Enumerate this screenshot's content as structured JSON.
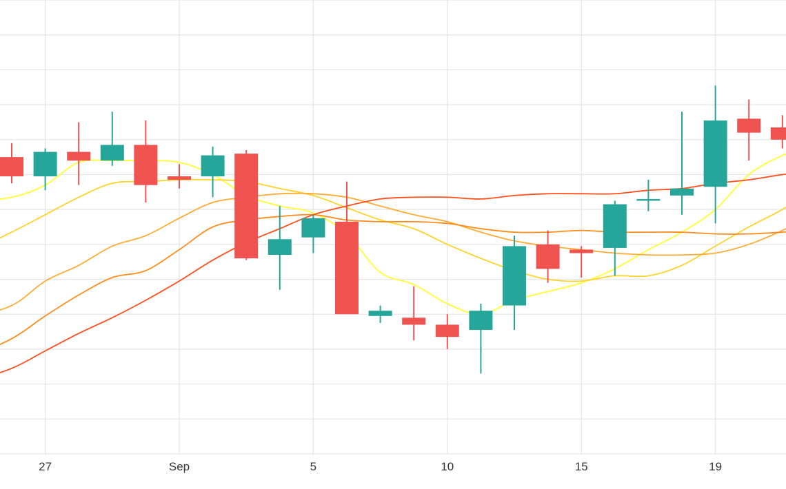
{
  "chart_data": {
    "type": "candlestick",
    "grid": true,
    "x_tick_labels": [
      {
        "label": "27",
        "index": 1
      },
      {
        "label": "Sep",
        "index": 5
      },
      {
        "label": "5",
        "index": 9
      },
      {
        "label": "10",
        "index": 13
      },
      {
        "label": "15",
        "index": 17
      },
      {
        "label": "19",
        "index": 21
      }
    ],
    "ylim": [
      0,
      13
    ],
    "y_gridlines": [
      1,
      2,
      3,
      4,
      5,
      6,
      7,
      8,
      9,
      10,
      11,
      12,
      13
    ],
    "candles": [
      {
        "i": 0,
        "open": 8.5,
        "high": 8.9,
        "low": 7.75,
        "close": 7.95
      },
      {
        "i": 1,
        "open": 7.95,
        "high": 8.75,
        "low": 7.55,
        "close": 8.65
      },
      {
        "i": 2,
        "open": 8.65,
        "high": 9.5,
        "low": 7.7,
        "close": 8.4
      },
      {
        "i": 3,
        "open": 8.4,
        "high": 9.8,
        "low": 8.25,
        "close": 8.85
      },
      {
        "i": 4,
        "open": 8.85,
        "high": 9.55,
        "low": 7.2,
        "close": 7.7
      },
      {
        "i": 5,
        "open": 7.95,
        "high": 8.3,
        "low": 7.6,
        "close": 7.85
      },
      {
        "i": 6,
        "open": 7.95,
        "high": 8.8,
        "low": 7.35,
        "close": 8.55
      },
      {
        "i": 7,
        "open": 8.6,
        "high": 8.7,
        "low": 5.55,
        "close": 5.6
      },
      {
        "i": 8,
        "open": 5.7,
        "high": 7.1,
        "low": 4.7,
        "close": 6.15
      },
      {
        "i": 9,
        "open": 6.2,
        "high": 6.85,
        "low": 5.75,
        "close": 6.75
      },
      {
        "i": 10,
        "open": 6.65,
        "high": 7.8,
        "low": 4.1,
        "close": 4.0
      },
      {
        "i": 11,
        "open": 3.95,
        "high": 4.25,
        "low": 3.75,
        "close": 4.1
      },
      {
        "i": 12,
        "open": 3.9,
        "high": 4.8,
        "low": 3.25,
        "close": 3.7
      },
      {
        "i": 13,
        "open": 3.7,
        "high": 4.0,
        "low": 3.0,
        "close": 3.35
      },
      {
        "i": 14,
        "open": 3.55,
        "high": 4.3,
        "low": 2.3,
        "close": 4.1
      },
      {
        "i": 15,
        "open": 4.25,
        "high": 6.25,
        "low": 3.55,
        "close": 5.95
      },
      {
        "i": 16,
        "open": 6.0,
        "high": 6.4,
        "low": 4.9,
        "close": 5.3
      },
      {
        "i": 17,
        "open": 5.85,
        "high": 5.95,
        "low": 5.05,
        "close": 5.75
      },
      {
        "i": 18,
        "open": 5.9,
        "high": 7.25,
        "low": 5.1,
        "close": 7.15
      },
      {
        "i": 19,
        "open": 7.25,
        "high": 7.85,
        "low": 6.95,
        "close": 7.3
      },
      {
        "i": 20,
        "open": 7.4,
        "high": 9.8,
        "low": 6.85,
        "close": 7.6
      },
      {
        "i": 21,
        "open": 7.65,
        "high": 10.55,
        "low": 6.6,
        "close": 9.55
      },
      {
        "i": 22,
        "open": 9.6,
        "high": 10.15,
        "low": 8.4,
        "close": 9.2
      },
      {
        "i": 23,
        "open": 9.35,
        "high": 9.7,
        "low": 8.75,
        "close": 9.0
      }
    ],
    "moving_averages": [
      {
        "color": "#ffff33",
        "points": [
          [
            -1.4,
            7.2
          ],
          [
            0,
            7.35
          ],
          [
            1,
            7.7
          ],
          [
            2,
            8.35
          ],
          [
            3,
            8.4
          ],
          [
            4,
            8.4
          ],
          [
            5,
            8.35
          ],
          [
            6,
            8.0
          ],
          [
            7,
            7.4
          ],
          [
            8,
            7.1
          ],
          [
            9,
            6.9
          ],
          [
            10,
            6.3
          ],
          [
            11,
            5.2
          ],
          [
            12,
            4.85
          ],
          [
            13,
            4.3
          ],
          [
            14,
            4.0
          ],
          [
            15,
            4.4
          ],
          [
            16,
            4.65
          ],
          [
            17,
            4.9
          ],
          [
            18,
            5.3
          ],
          [
            19,
            5.85
          ],
          [
            20,
            6.35
          ],
          [
            21,
            7.0
          ],
          [
            22,
            8.0
          ],
          [
            23,
            8.55
          ],
          [
            23.6,
            8.7
          ]
        ]
      },
      {
        "color": "#ffd22a",
        "points": [
          [
            -1.4,
            5.7
          ],
          [
            0,
            6.35
          ],
          [
            1,
            6.85
          ],
          [
            2,
            7.35
          ],
          [
            3,
            7.75
          ],
          [
            4,
            7.8
          ],
          [
            5,
            7.85
          ],
          [
            6,
            7.85
          ],
          [
            7,
            7.8
          ],
          [
            8,
            7.6
          ],
          [
            9,
            7.4
          ],
          [
            10,
            7.05
          ],
          [
            11,
            6.7
          ],
          [
            12,
            6.45
          ],
          [
            13,
            6.0
          ],
          [
            14,
            5.6
          ],
          [
            15,
            5.25
          ],
          [
            16,
            5.0
          ],
          [
            17,
            4.95
          ],
          [
            18,
            5.1
          ],
          [
            19,
            5.1
          ],
          [
            20,
            5.4
          ],
          [
            21,
            5.95
          ],
          [
            22,
            6.5
          ],
          [
            23,
            7.0
          ],
          [
            23.6,
            7.4
          ]
        ]
      },
      {
        "color": "#ffaa33",
        "points": [
          [
            -1.4,
            3.85
          ],
          [
            0,
            4.25
          ],
          [
            1,
            4.95
          ],
          [
            2,
            5.4
          ],
          [
            3,
            5.95
          ],
          [
            4,
            6.25
          ],
          [
            5,
            6.75
          ],
          [
            6,
            7.2
          ],
          [
            7,
            7.35
          ],
          [
            8,
            7.45
          ],
          [
            9,
            7.45
          ],
          [
            10,
            7.35
          ],
          [
            11,
            7.1
          ],
          [
            12,
            6.85
          ],
          [
            13,
            6.65
          ],
          [
            14,
            6.35
          ],
          [
            15,
            6.1
          ],
          [
            16,
            5.95
          ],
          [
            17,
            5.85
          ],
          [
            18,
            5.75
          ],
          [
            19,
            5.7
          ],
          [
            20,
            5.7
          ],
          [
            21,
            5.75
          ],
          [
            22,
            6.0
          ],
          [
            23,
            6.4
          ],
          [
            23.6,
            6.7
          ]
        ]
      },
      {
        "color": "#ff8c1a",
        "points": [
          [
            -1.4,
            2.7
          ],
          [
            0,
            3.3
          ],
          [
            1,
            3.95
          ],
          [
            2,
            4.55
          ],
          [
            3,
            5.05
          ],
          [
            4,
            5.25
          ],
          [
            5,
            5.85
          ],
          [
            6,
            6.5
          ],
          [
            7,
            6.7
          ],
          [
            8,
            6.8
          ],
          [
            9,
            6.85
          ],
          [
            10,
            6.7
          ],
          [
            11,
            6.65
          ],
          [
            12,
            6.65
          ],
          [
            13,
            6.6
          ],
          [
            14,
            6.45
          ],
          [
            15,
            6.35
          ],
          [
            16,
            6.35
          ],
          [
            17,
            6.4
          ],
          [
            18,
            6.35
          ],
          [
            19,
            6.35
          ],
          [
            20,
            6.35
          ],
          [
            21,
            6.3
          ],
          [
            22,
            6.3
          ],
          [
            23,
            6.35
          ],
          [
            23.6,
            6.4
          ]
        ]
      },
      {
        "color": "#ff4d1a",
        "points": [
          [
            -1.4,
            2.0
          ],
          [
            0,
            2.45
          ],
          [
            1,
            2.95
          ],
          [
            2,
            3.45
          ],
          [
            3,
            3.9
          ],
          [
            4,
            4.4
          ],
          [
            5,
            4.95
          ],
          [
            6,
            5.55
          ],
          [
            7,
            6.05
          ],
          [
            8,
            6.45
          ],
          [
            9,
            6.85
          ],
          [
            10,
            7.1
          ],
          [
            11,
            7.3
          ],
          [
            12,
            7.35
          ],
          [
            13,
            7.35
          ],
          [
            14,
            7.3
          ],
          [
            15,
            7.4
          ],
          [
            16,
            7.45
          ],
          [
            17,
            7.45
          ],
          [
            18,
            7.45
          ],
          [
            19,
            7.55
          ],
          [
            20,
            7.6
          ],
          [
            21,
            7.75
          ],
          [
            22,
            7.85
          ],
          [
            23,
            8.0
          ],
          [
            23.6,
            8.05
          ]
        ]
      }
    ],
    "colors": {
      "up": "#26a69a",
      "down": "#ef5350",
      "grid": "#e6e6e6"
    }
  }
}
